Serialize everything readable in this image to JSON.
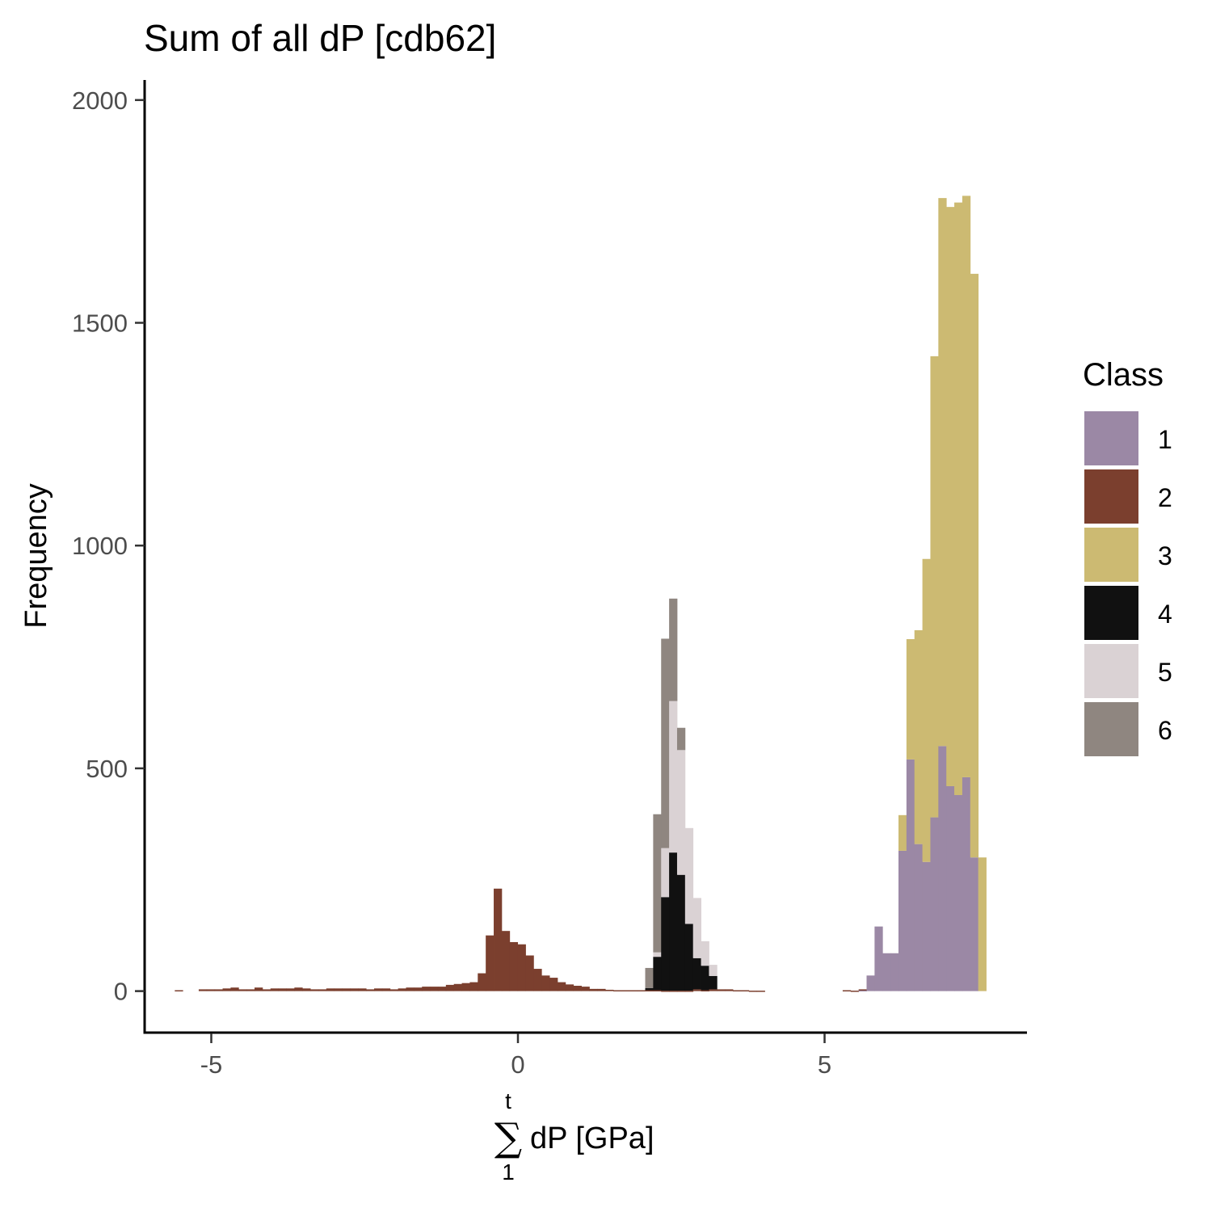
{
  "chart_data": {
    "type": "bar",
    "stacked": true,
    "title": "Sum of all dP [cdb62]",
    "xlabel": {
      "sum_symbol": "∑",
      "upper_limit": "t",
      "lower_limit": "1",
      "text": "dP [GPa]"
    },
    "ylabel": "Frequency",
    "xlim": [
      -6.1,
      8.3
    ],
    "ylim": [
      -95,
      2045
    ],
    "x_ticks": [
      -5,
      0,
      5
    ],
    "x_tick_labels": [
      "-5",
      "0",
      "5"
    ],
    "y_ticks": [
      0,
      500,
      1000,
      1500,
      2000
    ],
    "y_tick_labels": [
      "0",
      "500",
      "1000",
      "1500",
      "2000"
    ],
    "grid": false,
    "bin_width": 0.13,
    "x_bin_centers": [
      -5.53,
      -5.14,
      -5.01,
      -4.88,
      -4.75,
      -4.62,
      -4.49,
      -4.36,
      -4.23,
      -4.1,
      -3.97,
      -3.84,
      -3.71,
      -3.58,
      -3.45,
      -3.32,
      -3.19,
      -3.06,
      -2.93,
      -2.8,
      -2.67,
      -2.54,
      -2.41,
      -2.28,
      -2.15,
      -2.02,
      -1.89,
      -1.76,
      -1.63,
      -1.5,
      -1.37,
      -1.24,
      -1.11,
      -0.98,
      -0.85,
      -0.72,
      -0.59,
      -0.46,
      -0.33,
      -0.2,
      -0.07,
      0.06,
      0.19,
      0.32,
      0.45,
      0.58,
      0.71,
      0.84,
      0.97,
      1.1,
      1.23,
      1.36,
      1.49,
      1.62,
      1.75,
      1.88,
      2.01,
      2.14,
      2.27,
      2.4,
      2.53,
      2.66,
      2.79,
      2.92,
      3.05,
      3.18,
      3.31,
      3.44,
      3.57,
      3.7,
      3.83,
      3.96,
      5.36,
      5.49,
      5.62,
      5.75,
      5.88,
      6.01,
      6.14,
      6.27,
      6.4,
      6.53,
      6.66,
      6.79,
      6.92,
      7.05,
      7.18,
      7.31,
      7.44,
      7.57,
      7.7
    ],
    "series": [
      {
        "name": "1",
        "color": "#9b88a5",
        "values": [
          0,
          0,
          0,
          0,
          0,
          0,
          0,
          0,
          0,
          0,
          0,
          0,
          0,
          0,
          0,
          0,
          0,
          0,
          0,
          0,
          0,
          0,
          0,
          0,
          0,
          0,
          0,
          0,
          0,
          0,
          0,
          0,
          0,
          0,
          0,
          0,
          0,
          0,
          0,
          0,
          0,
          0,
          0,
          0,
          0,
          0,
          0,
          0,
          0,
          0,
          0,
          0,
          0,
          0,
          0,
          0,
          0,
          0,
          0,
          0,
          0,
          0,
          0,
          0,
          0,
          0,
          0,
          0,
          0,
          0,
          0,
          0,
          0,
          0,
          2,
          35,
          145,
          85,
          85,
          315,
          520,
          330,
          290,
          390,
          550,
          460,
          440,
          480,
          300,
          0
        ]
      },
      {
        "name": "2",
        "color": "#7b3f2e",
        "values": [
          2,
          4,
          4,
          4,
          6,
          8,
          4,
          4,
          8,
          4,
          6,
          6,
          6,
          8,
          6,
          4,
          4,
          6,
          6,
          6,
          6,
          6,
          4,
          6,
          6,
          4,
          6,
          8,
          8,
          10,
          10,
          10,
          14,
          16,
          18,
          20,
          40,
          125,
          230,
          135,
          110,
          105,
          80,
          50,
          35,
          30,
          20,
          15,
          12,
          10,
          5,
          5,
          3,
          2,
          2,
          2,
          2,
          2,
          2,
          1,
          1,
          1,
          1,
          4,
          2,
          4,
          4,
          4,
          2,
          2,
          1,
          1,
          2,
          1,
          2,
          0,
          0,
          0,
          0,
          0,
          0,
          0,
          0,
          0,
          0,
          0,
          0,
          0,
          0,
          0,
          0
        ]
      },
      {
        "name": "3",
        "color": "#ccba72",
        "values": [
          0,
          0,
          0,
          0,
          0,
          0,
          0,
          0,
          0,
          0,
          0,
          0,
          0,
          0,
          0,
          0,
          0,
          0,
          0,
          0,
          0,
          0,
          0,
          0,
          0,
          0,
          0,
          0,
          0,
          0,
          0,
          0,
          0,
          0,
          0,
          0,
          0,
          0,
          0,
          0,
          0,
          0,
          0,
          0,
          0,
          0,
          0,
          0,
          0,
          0,
          0,
          0,
          0,
          0,
          0,
          0,
          0,
          0,
          0,
          0,
          0,
          0,
          0,
          0,
          0,
          0,
          0,
          0,
          0,
          0,
          0,
          0,
          0,
          0,
          0,
          0,
          0,
          0,
          0,
          80,
          270,
          480,
          680,
          1035,
          1230,
          1300,
          1330,
          1305,
          1310,
          300,
          0
        ]
      },
      {
        "name": "4",
        "color": "#111111",
        "values": [
          0,
          0,
          0,
          0,
          0,
          0,
          0,
          0,
          0,
          0,
          0,
          0,
          0,
          0,
          0,
          0,
          0,
          0,
          0,
          0,
          0,
          0,
          0,
          0,
          0,
          0,
          0,
          0,
          0,
          0,
          0,
          0,
          0,
          0,
          0,
          0,
          0,
          0,
          0,
          0,
          0,
          0,
          0,
          0,
          0,
          0,
          0,
          0,
          0,
          0,
          0,
          0,
          0,
          0,
          0,
          0,
          0,
          5,
          75,
          210,
          310,
          260,
          150,
          70,
          55,
          30,
          0,
          0,
          0,
          0,
          0,
          0,
          0,
          0,
          0,
          0,
          0,
          0,
          0,
          0,
          0,
          0,
          0,
          0,
          0,
          0,
          0,
          0,
          0,
          0,
          0
        ]
      },
      {
        "name": "5",
        "color": "#dad2d4",
        "values": [
          0,
          0,
          0,
          0,
          0,
          0,
          0,
          0,
          0,
          0,
          0,
          0,
          0,
          0,
          0,
          0,
          0,
          0,
          0,
          0,
          0,
          0,
          0,
          0,
          0,
          0,
          0,
          0,
          0,
          0,
          0,
          0,
          0,
          0,
          0,
          0,
          0,
          0,
          0,
          0,
          0,
          0,
          0,
          0,
          0,
          0,
          0,
          0,
          0,
          0,
          0,
          0,
          0,
          0,
          0,
          0,
          0,
          0,
          10,
          110,
          340,
          280,
          215,
          135,
          55,
          25,
          0,
          0,
          0,
          0,
          0,
          0,
          0,
          0,
          0,
          0,
          0,
          0,
          0,
          0,
          0,
          0,
          0,
          0,
          0,
          0,
          0,
          0,
          0,
          0,
          0
        ]
      },
      {
        "name": "6",
        "color": "#8f8680",
        "values": [
          0,
          0,
          0,
          0,
          0,
          0,
          0,
          0,
          0,
          0,
          0,
          0,
          0,
          0,
          0,
          0,
          0,
          0,
          0,
          0,
          0,
          0,
          0,
          0,
          0,
          0,
          0,
          0,
          0,
          0,
          0,
          0,
          0,
          0,
          0,
          0,
          0,
          0,
          0,
          0,
          0,
          0,
          0,
          0,
          0,
          0,
          0,
          0,
          0,
          0,
          0,
          0,
          0,
          0,
          0,
          0,
          0,
          45,
          310,
          470,
          230,
          50,
          0,
          0,
          0,
          0,
          0,
          0,
          0,
          0,
          0,
          0,
          0,
          0,
          0,
          0,
          0,
          0,
          0,
          0,
          0,
          0,
          0,
          0,
          0,
          0,
          0,
          0,
          0,
          0,
          0
        ]
      }
    ],
    "legend": {
      "title": "Class",
      "position": "right",
      "items": [
        {
          "label": "1",
          "color": "#9b88a5"
        },
        {
          "label": "2",
          "color": "#7b3f2e"
        },
        {
          "label": "3",
          "color": "#ccba72"
        },
        {
          "label": "4",
          "color": "#111111"
        },
        {
          "label": "5",
          "color": "#dad2d4"
        },
        {
          "label": "6",
          "color": "#8f8680"
        }
      ]
    }
  }
}
